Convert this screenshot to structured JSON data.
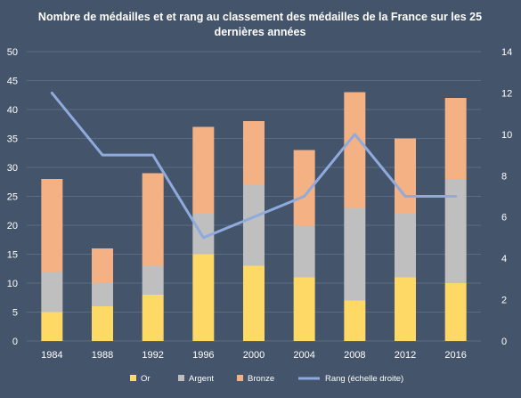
{
  "chart_data": {
    "type": "bar",
    "stacked": true,
    "title_line1": "Nombre de médailles et et rang au classement des médailles de la France sur les 25",
    "title_line2": "dernières années",
    "categories": [
      "1984",
      "1988",
      "1992",
      "1996",
      "2000",
      "2004",
      "2008",
      "2012",
      "2016"
    ],
    "series": [
      {
        "name": "Or",
        "color": "#ffd966",
        "values": [
          5,
          6,
          8,
          15,
          13,
          11,
          7,
          11,
          10
        ]
      },
      {
        "name": "Argent",
        "color": "#bfbfbf",
        "values": [
          7,
          4,
          5,
          7,
          14,
          9,
          16,
          11,
          18
        ]
      },
      {
        "name": "Bronze",
        "color": "#f4b183",
        "values": [
          16,
          6,
          16,
          15,
          11,
          13,
          20,
          13,
          14
        ]
      }
    ],
    "line_series": {
      "name": "Rang (échelle droite)",
      "color": "#8faadc",
      "axis": "right",
      "values": [
        12,
        9,
        9,
        5,
        6,
        7,
        10,
        7,
        7
      ]
    },
    "y_left": {
      "min": 0,
      "max": 50,
      "ticks": [
        "0",
        "5",
        "10",
        "15",
        "20",
        "25",
        "30",
        "35",
        "40",
        "45",
        "50"
      ]
    },
    "y_right": {
      "min": 0,
      "max": 14,
      "ticks": [
        "0",
        "2",
        "4",
        "6",
        "8",
        "10",
        "12",
        "14"
      ]
    },
    "grid": true,
    "legend_position": "bottom"
  }
}
